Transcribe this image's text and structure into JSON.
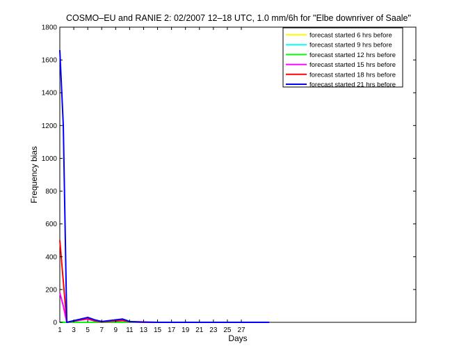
{
  "chart_data": {
    "type": "line",
    "title": "COSMO–EU and RANIE 2: 02/2007 12–18 UTC, 1.0 mm/6h for \"Elbe downriver of Saale\"",
    "xlabel": "Days",
    "ylabel": "Frequency bias",
    "xlim": [
      1,
      52
    ],
    "ylim": [
      0,
      1800
    ],
    "xticks": [
      1,
      3,
      5,
      7,
      9,
      11,
      13,
      15,
      17,
      19,
      21,
      23,
      25,
      27
    ],
    "yticks": [
      0,
      200,
      400,
      600,
      800,
      1000,
      1200,
      1400,
      1600,
      1800
    ],
    "grid": false,
    "legend_position": "top-right",
    "colors": {
      "yellow": "#ffff00",
      "cyan": "#00ffff",
      "green": "#00ff00",
      "magenta": "#ff00ff",
      "red": "#ff0000",
      "blue": "#0000ff"
    },
    "series": [
      {
        "name": "forecast started 6 hrs before",
        "color": "#ffff00",
        "points": [
          [
            1,
            0
          ],
          [
            1.5,
            0
          ],
          [
            2,
            0
          ],
          [
            5,
            0
          ],
          [
            6,
            0
          ],
          [
            7,
            0
          ],
          [
            10,
            0
          ],
          [
            11,
            0
          ],
          [
            13,
            0
          ],
          [
            15,
            0
          ],
          [
            20,
            0
          ],
          [
            25,
            0
          ],
          [
            31,
            0
          ]
        ]
      },
      {
        "name": "forecast started 9 hrs before",
        "color": "#00ffff",
        "points": [
          [
            1,
            0
          ],
          [
            1.5,
            0
          ],
          [
            2,
            0
          ],
          [
            5,
            0
          ],
          [
            6,
            0
          ],
          [
            7,
            0
          ],
          [
            10,
            0
          ],
          [
            11,
            0
          ],
          [
            13,
            0
          ],
          [
            15,
            0
          ],
          [
            20,
            0
          ],
          [
            25,
            0
          ],
          [
            31,
            0
          ]
        ]
      },
      {
        "name": "forecast started 12 hrs before",
        "color": "#00ff00",
        "points": [
          [
            1,
            0
          ],
          [
            1.5,
            0
          ],
          [
            2,
            0
          ],
          [
            5,
            0
          ],
          [
            6,
            0
          ],
          [
            7,
            0
          ],
          [
            10,
            0
          ],
          [
            11,
            0
          ],
          [
            13,
            0
          ],
          [
            15,
            0
          ],
          [
            20,
            0
          ],
          [
            25,
            0
          ],
          [
            31,
            0
          ]
        ]
      },
      {
        "name": "forecast started 15 hrs before",
        "color": "#ff00ff",
        "points": [
          [
            1,
            180
          ],
          [
            1.5,
            100
          ],
          [
            2,
            0
          ],
          [
            5,
            20
          ],
          [
            6,
            8
          ],
          [
            7,
            2
          ],
          [
            10,
            10
          ],
          [
            11,
            3
          ],
          [
            13,
            0
          ],
          [
            15,
            0
          ],
          [
            20,
            0
          ],
          [
            25,
            0
          ],
          [
            31,
            0
          ]
        ]
      },
      {
        "name": "forecast started 18 hrs before",
        "color": "#ff0000",
        "points": [
          [
            1,
            500
          ],
          [
            1.5,
            250
          ],
          [
            2,
            0
          ],
          [
            5,
            25
          ],
          [
            6,
            10
          ],
          [
            7,
            3
          ],
          [
            10,
            12
          ],
          [
            11,
            4
          ],
          [
            13,
            0
          ],
          [
            15,
            0
          ],
          [
            20,
            0
          ],
          [
            25,
            0
          ],
          [
            31,
            0
          ]
        ]
      },
      {
        "name": "forecast started 21 hrs before",
        "color": "#0000ff",
        "points": [
          [
            1,
            1660
          ],
          [
            1.5,
            1200
          ],
          [
            2,
            0
          ],
          [
            5,
            30
          ],
          [
            6,
            15
          ],
          [
            7,
            5
          ],
          [
            10,
            20
          ],
          [
            11,
            5
          ],
          [
            13,
            2
          ],
          [
            15,
            0
          ],
          [
            20,
            0
          ],
          [
            25,
            0
          ],
          [
            31,
            0
          ]
        ]
      }
    ]
  }
}
